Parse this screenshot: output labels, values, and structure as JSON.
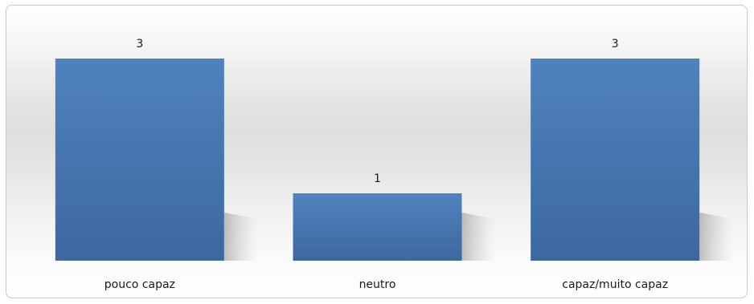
{
  "chart_data": {
    "type": "bar",
    "categories": [
      "pouco capaz",
      "neutro",
      "capaz/muito capaz"
    ],
    "values": [
      3,
      1,
      3
    ],
    "data_labels": [
      "3",
      "1",
      "3"
    ],
    "title": "",
    "xlabel": "",
    "ylabel": "",
    "ylim": [
      0,
      3
    ],
    "grid": false,
    "legend": "none",
    "bar_color": "#4a7ebb",
    "bar_color_dark": "#3d69a0"
  }
}
